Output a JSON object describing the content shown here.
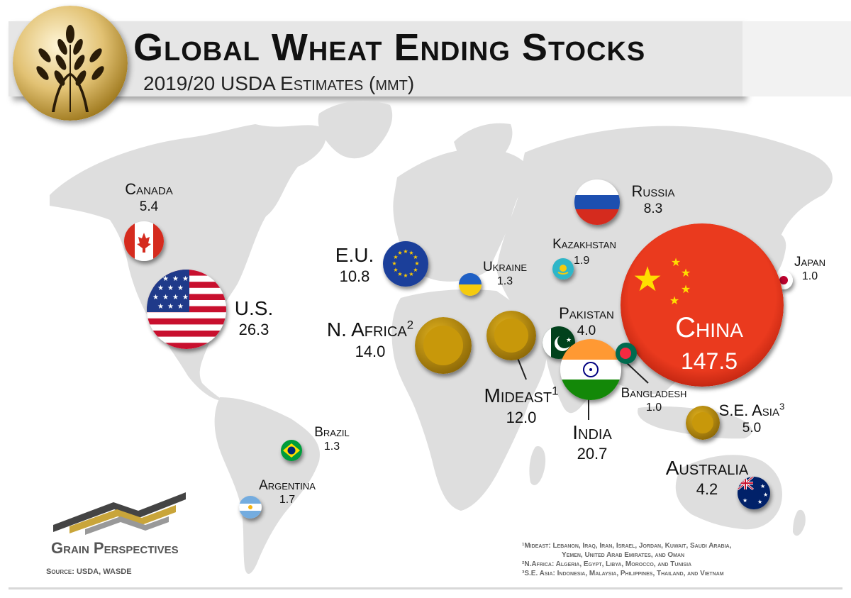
{
  "title": "Global Wheat Ending Stocks",
  "subtitle": "2019/20 USDA Estimates (mmt)",
  "logo": {
    "icon": "wheat-globe-icon",
    "text": "Grain Perspectives"
  },
  "source": "Source: USDA, WASDE",
  "footnotes": [
    "¹Mideast: Lebanon, Iraq, Iran, Israel, Jordan, Kuwait, Saudi Arabia,",
    "Yemen, United Arab Emirates, and Oman",
    "²N.Africa: Algeria, Egypt, Libya, Morocco, and Tunisia",
    "³S.E. Asia: Indonesia, Malaysia, Philippines, Thailand, and Vietnam"
  ],
  "regions": {
    "canada": {
      "name": "Canada",
      "value": "5.4"
    },
    "us": {
      "name": "U.S.",
      "value": "26.3"
    },
    "eu": {
      "name": "E.U.",
      "value": "10.8"
    },
    "ukraine": {
      "name": "Ukraine",
      "value": "1.3"
    },
    "russia": {
      "name": "Russia",
      "value": "8.3"
    },
    "kazakhstan": {
      "name": "Kazakhstan",
      "value": "1.9"
    },
    "japan": {
      "name": "Japan",
      "value": "1.0"
    },
    "china": {
      "name": "China",
      "value": "147.5"
    },
    "nafrica": {
      "name": "N. Africa",
      "sup": "2",
      "value": "14.0"
    },
    "mideast": {
      "name": "Mideast",
      "sup": "1",
      "value": "12.0"
    },
    "pakistan": {
      "name": "Pakistan",
      "value": "4.0"
    },
    "india": {
      "name": "India",
      "value": "20.7"
    },
    "bangladesh": {
      "name": "Bangladesh",
      "value": "1.0"
    },
    "seasia": {
      "name": "S.E. Asia",
      "sup": "3",
      "value": "5.0"
    },
    "australia": {
      "name": "Australia",
      "value": "4.2"
    },
    "brazil": {
      "name": "Brazil",
      "value": "1.3"
    },
    "argentina": {
      "name": "Argentina",
      "value": "1.7"
    }
  },
  "colors": {
    "gold": "#c8980a",
    "china_red": "#e8341c",
    "map_gray": "#dcdcdc"
  }
}
